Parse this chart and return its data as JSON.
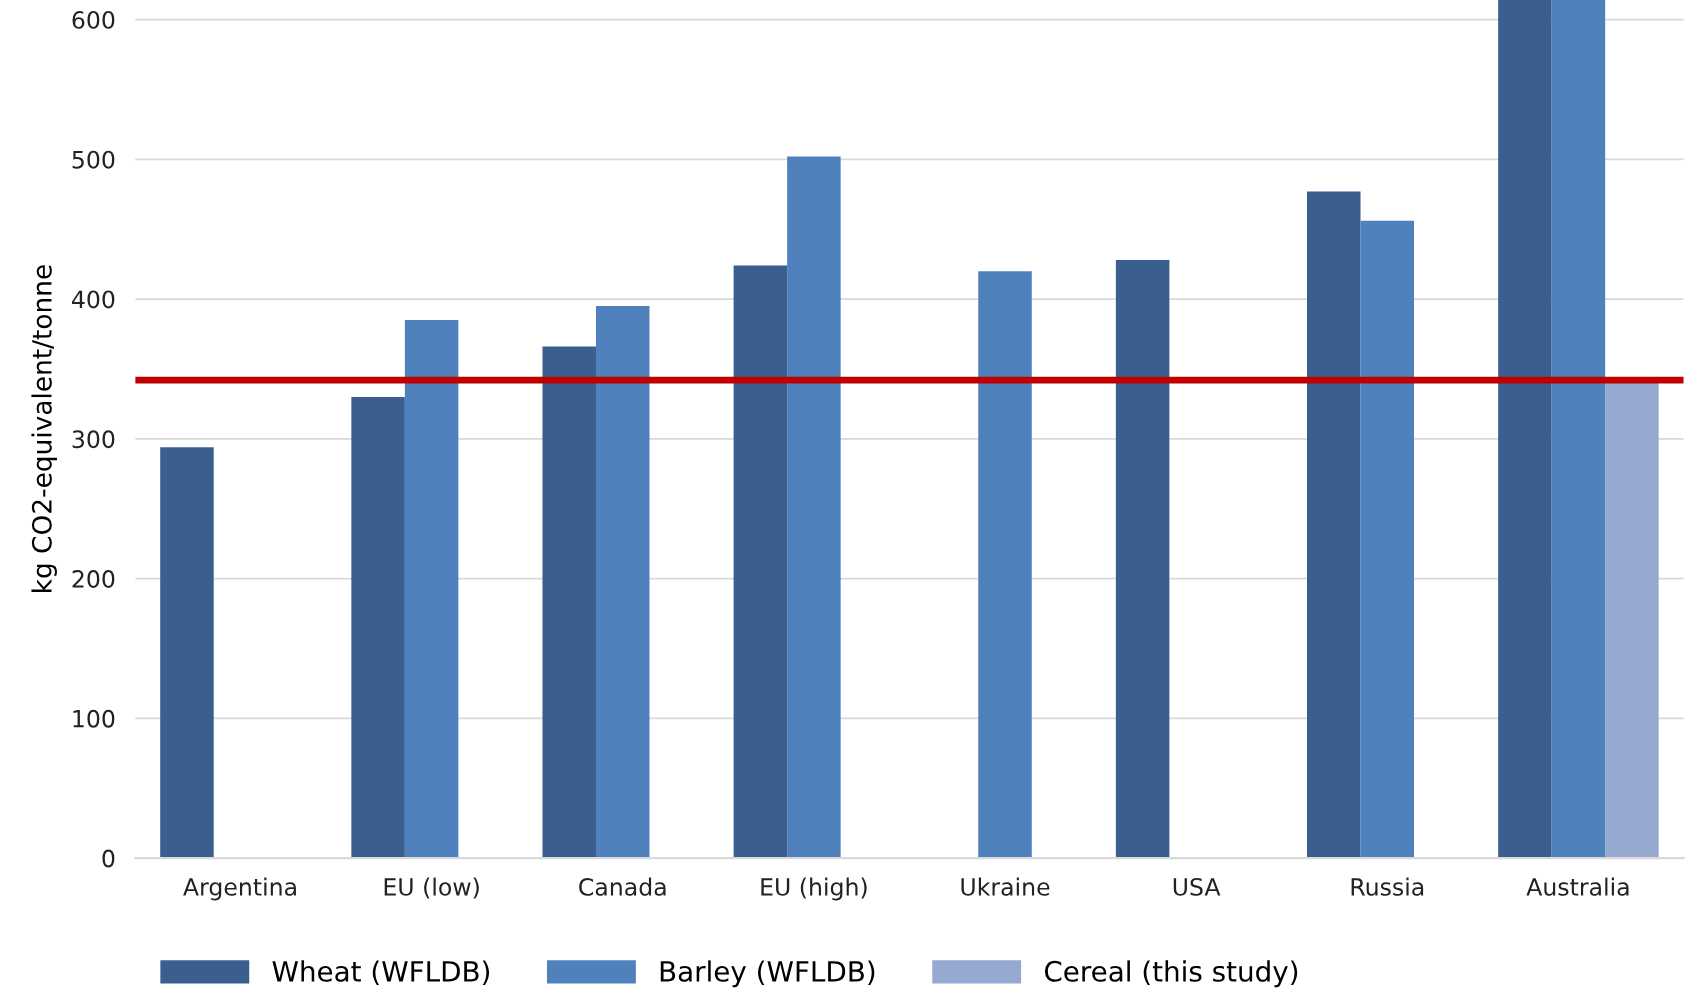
{
  "chart_data": {
    "type": "bar",
    "ylabel": "kg CO2-equivalent/tonne",
    "categories": [
      "Argentina",
      "EU (low)",
      "Canada",
      "EU (high)",
      "Ukraine",
      "USA",
      "Russia",
      "Australia"
    ],
    "series": [
      {
        "name": "Wheat (WFLDB)",
        "color": "#3a5f8f",
        "values": [
          294,
          330,
          366,
          424,
          null,
          428,
          477,
          614
        ]
      },
      {
        "name": "Barley (WFLDB)",
        "color": "#4f81bd",
        "values": [
          null,
          385,
          395,
          502,
          420,
          null,
          456,
          614
        ]
      },
      {
        "name": "Cereal (this study)",
        "color": "#95a9d1",
        "values": [
          null,
          null,
          null,
          null,
          null,
          null,
          null,
          341
        ]
      }
    ],
    "ylim": [
      0,
      614
    ],
    "yticks": [
      0,
      100,
      200,
      300,
      400,
      500,
      600
    ],
    "ref_lines": [
      {
        "axis": "y",
        "value": 342,
        "color": "#c00000",
        "line_style": "solid"
      }
    ],
    "grid": "y",
    "legend": "bottom"
  }
}
